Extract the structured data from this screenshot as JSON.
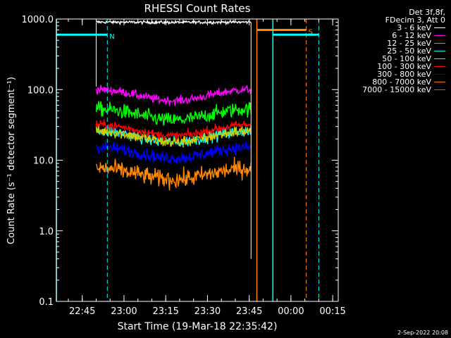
{
  "chart_data": {
    "type": "line",
    "title": "RHESSI Count Rates",
    "xlabel": "Start Time (19-Mar-18 22:35:42)",
    "ylabel": "Count Rate (s⁻¹ detector segment⁻¹)",
    "y_scale": "log",
    "ylim": [
      0.1,
      1000.0
    ],
    "y_ticks": [
      "0.1",
      "1.0",
      "10.0",
      "100.0",
      "1000.0"
    ],
    "xlim": [
      "22:35:42",
      "00:17:00"
    ],
    "x_ticks": [
      "22:45",
      "23:00",
      "23:15",
      "23:30",
      "23:45",
      "00:00",
      "00:15"
    ],
    "grid": false,
    "legend_placement": "right",
    "legend_header": [
      "Det 3f,8f,",
      "FDecim 3, Att 0"
    ],
    "series": [
      {
        "name": "3 - 6 keV",
        "color": "#ffffff",
        "level": 900,
        "noise": 0.02,
        "start": "22:50:00",
        "end": "23:45:40"
      },
      {
        "name": "6 - 12 keV",
        "color": "#ff00ff",
        "level": 85,
        "noise": 0.06,
        "start": "22:50:00",
        "end": "23:45:40"
      },
      {
        "name": "12 - 25 keV",
        "color": "#00ff00",
        "level": 45,
        "noise": 0.1,
        "start": "22:50:00",
        "end": "23:45:40"
      },
      {
        "name": "25 - 50 keV",
        "color": "#00ffff",
        "level": 22,
        "noise": 0.08,
        "start": "22:50:00",
        "end": "23:45:40"
      },
      {
        "name": "50 - 100 keV",
        "color": "#cccc00",
        "level": 22,
        "noise": 0.08,
        "start": "22:50:00",
        "end": "23:45:40"
      },
      {
        "name": "100 - 300 keV",
        "color": "#ff0000",
        "level": 27,
        "noise": 0.06,
        "start": "22:50:00",
        "end": "23:45:40"
      },
      {
        "name": "300 - 800 keV",
        "color": "#0000ff",
        "level": 13,
        "noise": 0.08,
        "start": "22:50:00",
        "end": "23:45:40"
      },
      {
        "name": "800 - 7000 keV",
        "color": "#ff8800",
        "level": 6.5,
        "noise": 0.12,
        "start": "22:50:00",
        "end": "23:45:40"
      },
      {
        "name": "7000 - 15000 keV",
        "color": "#888800",
        "level": null,
        "noise": 0,
        "start": null,
        "end": null
      }
    ],
    "markers": [
      {
        "label": "N",
        "color": "#00ffff",
        "solid_time": "22:35:42",
        "dashed_time": "22:54:00",
        "bar_y": 600,
        "bar_start": "22:35:42",
        "bar_end": "22:54:00"
      },
      {
        "label": "S",
        "color": "#ff8800",
        "solid_time": "23:47:45",
        "dashed_time": "00:05:30",
        "bar_y": 700,
        "bar_start": "23:47:45",
        "bar_end": "00:05:30"
      },
      {
        "label": "",
        "color": "#00ffff",
        "solid_time": "23:53:30",
        "dashed_time": "00:10:00",
        "bar_y": 600,
        "bar_start": "23:53:30",
        "bar_end": "00:10:00"
      }
    ]
  },
  "footer": {
    "datestamp": "2-Sep-2022 20:08"
  }
}
